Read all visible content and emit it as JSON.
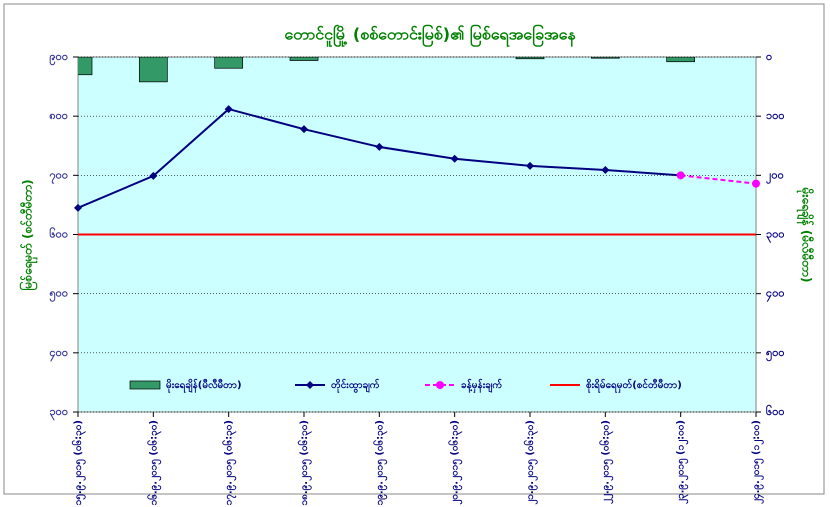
{
  "chart_data": {
    "type": "combo",
    "title": "တောင်ငူမြို့ (စစ်တောင်းမြစ်)၏ မြစ်ရေအခြေအနေ",
    "y_label": "မြစ်ရေမှတ် (စင်တီမီတာ)",
    "y2_label": "မိုးရေချိန် (မီလီမီတာ)",
    "categories": [
      "၁၅.၉.၂၀၁၅ (၀၆:၃၀)",
      "၁၆.၉.၂၀၁၅ (၀၆:၃၀)",
      "၁၇.၉.၂၀၁၅ (၀၆:၃၀)",
      "၁၈.၉.၂၀၁၅ (၀၆:၃၀)",
      "၁၉.၉.၂၀၁၅ (၀၆:၃၀)",
      "၂၀.၉.၂၀၁၅ (၀၆:၃၀)",
      "၂၁.၉.၂၀၁၅ (၀၆:၃၀)",
      "၂၂.၉.၂၀၁၅ (၀၆:၃၀)",
      "၂၃.၉.၂၀၁၅ (၁၂:၀၀)",
      "၂၄.၉.၂၀၁၅ (၁၂:၀၀)"
    ],
    "series": [
      {
        "name": "မိုးရေချိန်(မီလီမီတာ)",
        "type": "bar",
        "axis": "y2",
        "color": "#339966",
        "values": [
          30,
          42,
          19,
          6,
          0,
          0,
          3,
          2,
          8,
          0
        ]
      },
      {
        "name": "တိုင်းထွာချက်",
        "type": "line",
        "color": "#000080",
        "marker": "diamond",
        "values": [
          645,
          699,
          812,
          778,
          748,
          728,
          716,
          709,
          700,
          null
        ]
      },
      {
        "name": "ခန့်မှန်းချက်",
        "type": "line",
        "color": "#ff00ff",
        "marker": "circle",
        "dashed": true,
        "values": [
          null,
          null,
          null,
          null,
          null,
          null,
          null,
          null,
          700,
          686
        ]
      },
      {
        "name": "စိုးရိမ်ရေမှတ်(စင်တီမီတာ)",
        "type": "hline",
        "color": "#ff0000",
        "value": 600
      }
    ],
    "ylim": [
      300,
      900
    ],
    "yticks": [
      {
        "value": 300,
        "label": "၃၀၀"
      },
      {
        "value": 400,
        "label": "၄၀၀"
      },
      {
        "value": 500,
        "label": "၅၀၀"
      },
      {
        "value": 600,
        "label": "၆၀၀"
      },
      {
        "value": 700,
        "label": "၇၀၀"
      },
      {
        "value": 800,
        "label": "၈၀၀"
      },
      {
        "value": 900,
        "label": "၉၀၀"
      }
    ],
    "y2lim": [
      0,
      600
    ],
    "y2_inverted": true,
    "y2ticks": [
      {
        "value": 0,
        "label": "၀"
      },
      {
        "value": 100,
        "label": "၁၀၀"
      },
      {
        "value": 200,
        "label": "၂၀၀"
      },
      {
        "value": 300,
        "label": "၃၀၀"
      },
      {
        "value": 400,
        "label": "၄၀၀"
      },
      {
        "value": 500,
        "label": "၅၀၀"
      },
      {
        "value": 600,
        "label": "၆၀၀"
      }
    ],
    "grid": true,
    "background": "#ccffff"
  }
}
